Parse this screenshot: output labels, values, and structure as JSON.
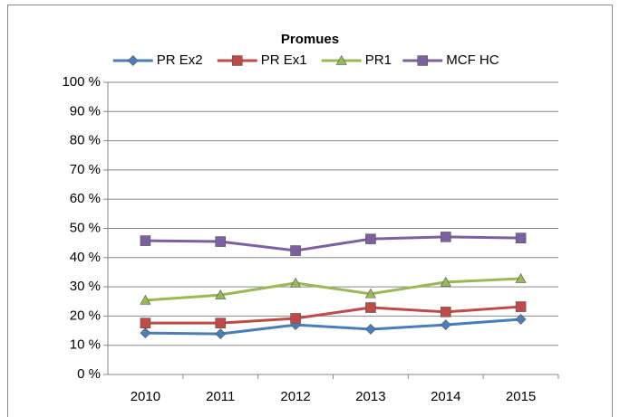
{
  "chart_data": {
    "type": "line",
    "title": "Promues",
    "categories": [
      "2010",
      "2011",
      "2012",
      "2013",
      "2014",
      "2015"
    ],
    "series": [
      {
        "name": "PR Ex2",
        "color": "#4a7ebb",
        "marker": "diamond",
        "values": [
          14.2,
          13.9,
          17,
          15.5,
          17,
          18.9
        ]
      },
      {
        "name": "PR Ex1",
        "color": "#be4b48",
        "marker": "square",
        "values": [
          17.6,
          17.6,
          19.2,
          22.9,
          21.4,
          23.2
        ]
      },
      {
        "name": "PR1",
        "color": "#98b954",
        "marker": "triangle",
        "values": [
          25.4,
          27.2,
          31.3,
          27.6,
          31.6,
          32.8
        ]
      },
      {
        "name": "MCF HC",
        "color": "#7d60a0",
        "marker": "square",
        "values": [
          45.8,
          45.5,
          42.4,
          46.4,
          47.1,
          46.7
        ]
      }
    ],
    "ylim": [
      0,
      100
    ],
    "yticks": [
      {
        "value": 0,
        "label": "0 %"
      },
      {
        "value": 10,
        "label": "10 %"
      },
      {
        "value": 20,
        "label": "20 %"
      },
      {
        "value": 30,
        "label": "30 %"
      },
      {
        "value": 40,
        "label": "40 %"
      },
      {
        "value": 50,
        "label": "50 %"
      },
      {
        "value": 60,
        "label": "60 %"
      },
      {
        "value": 70,
        "label": "70 %"
      },
      {
        "value": 80,
        "label": "80 %"
      },
      {
        "value": 90,
        "label": "90 %"
      },
      {
        "value": 100,
        "label": "100 %"
      }
    ],
    "grid": true,
    "legend": "top"
  }
}
